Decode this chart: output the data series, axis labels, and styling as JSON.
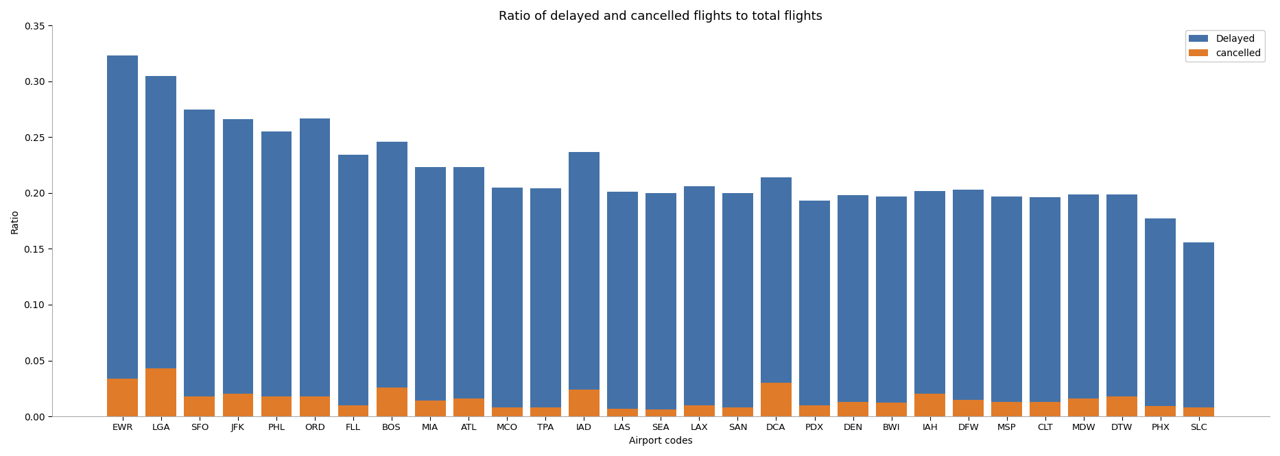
{
  "airports": [
    "EWR",
    "LGA",
    "SFO",
    "JFK",
    "PHL",
    "ORD",
    "FLL",
    "BOS",
    "MIA",
    "ATL",
    "MCO",
    "TPA",
    "IAD",
    "LAS",
    "SEA",
    "LAX",
    "SAN",
    "DCA",
    "PDX",
    "DEN",
    "BWI",
    "IAH",
    "DFW",
    "MSP",
    "CLT",
    "MDW",
    "DTW",
    "PHX",
    "SLC"
  ],
  "delayed": [
    0.289,
    0.262,
    0.257,
    0.246,
    0.237,
    0.249,
    0.224,
    0.22,
    0.209,
    0.207,
    0.197,
    0.196,
    0.213,
    0.194,
    0.194,
    0.196,
    0.192,
    0.184,
    0.183,
    0.185,
    0.185,
    0.182,
    0.188,
    0.184,
    0.183,
    0.183,
    0.181,
    0.168,
    0.147
  ],
  "cancelled": [
    0.034,
    0.043,
    0.018,
    0.02,
    0.018,
    0.018,
    0.01,
    0.026,
    0.014,
    0.016,
    0.008,
    0.008,
    0.024,
    0.007,
    0.006,
    0.01,
    0.008,
    0.03,
    0.01,
    0.013,
    0.012,
    0.02,
    0.015,
    0.013,
    0.013,
    0.016,
    0.018,
    0.009,
    0.008
  ],
  "total": [
    0.323,
    0.305,
    0.275,
    0.266,
    0.255,
    0.267,
    0.234,
    0.246,
    0.223,
    0.223,
    0.205,
    0.204,
    0.237,
    0.201,
    0.2,
    0.206,
    0.2,
    0.214,
    0.193,
    0.198,
    0.197,
    0.202,
    0.203,
    0.197,
    0.196,
    0.199,
    0.199,
    0.177,
    0.156
  ],
  "bar_color_delayed": "#4472a8",
  "bar_color_cancelled": "#e07b2a",
  "title": "Ratio of delayed and cancelled flights to total flights",
  "xlabel": "Airport codes",
  "ylabel": "Ratio",
  "ylim": [
    0,
    0.35
  ],
  "legend_labels": [
    "Delayed",
    "cancelled"
  ],
  "background_color": "#ffffff",
  "grid_color": "white",
  "title_fontsize": 13,
  "label_fontsize": 10,
  "tick_fontsize": 9.5
}
